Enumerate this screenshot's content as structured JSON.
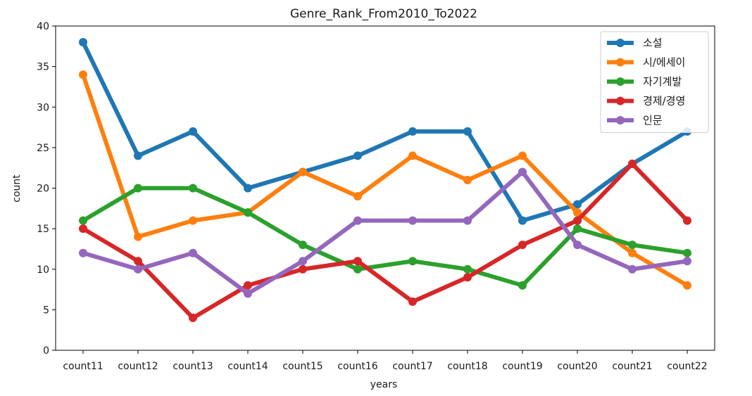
{
  "chart_data": {
    "type": "line",
    "title": "Genre_Rank_From2010_To2022",
    "xlabel": "years",
    "ylabel": "count",
    "ylim": [
      0,
      40
    ],
    "yticks": [
      0,
      5,
      10,
      15,
      20,
      25,
      30,
      35,
      40
    ],
    "grid": false,
    "legend_position": "top-right",
    "categories": [
      "count11",
      "count12",
      "count13",
      "count14",
      "count15",
      "count16",
      "count17",
      "count18",
      "count19",
      "count20",
      "count21",
      "count22"
    ],
    "series": [
      {
        "name": "소설",
        "color": "#1f77b4",
        "values": [
          38,
          24,
          27,
          20,
          22,
          24,
          27,
          27,
          16,
          18,
          23,
          27
        ]
      },
      {
        "name": "시/에세이",
        "color": "#ff7f0e",
        "values": [
          34,
          14,
          16,
          17,
          22,
          19,
          24,
          21,
          24,
          17,
          12,
          8
        ]
      },
      {
        "name": "자기계발",
        "color": "#2ca02c",
        "values": [
          16,
          20,
          20,
          17,
          13,
          10,
          11,
          10,
          8,
          15,
          13,
          12
        ]
      },
      {
        "name": "경제/경영",
        "color": "#d62728",
        "values": [
          15,
          11,
          4,
          8,
          10,
          11,
          6,
          9,
          13,
          16,
          23,
          16
        ]
      },
      {
        "name": "인문",
        "color": "#9467bd",
        "values": [
          12,
          10,
          12,
          7,
          11,
          16,
          16,
          16,
          22,
          13,
          10,
          11
        ]
      }
    ]
  }
}
